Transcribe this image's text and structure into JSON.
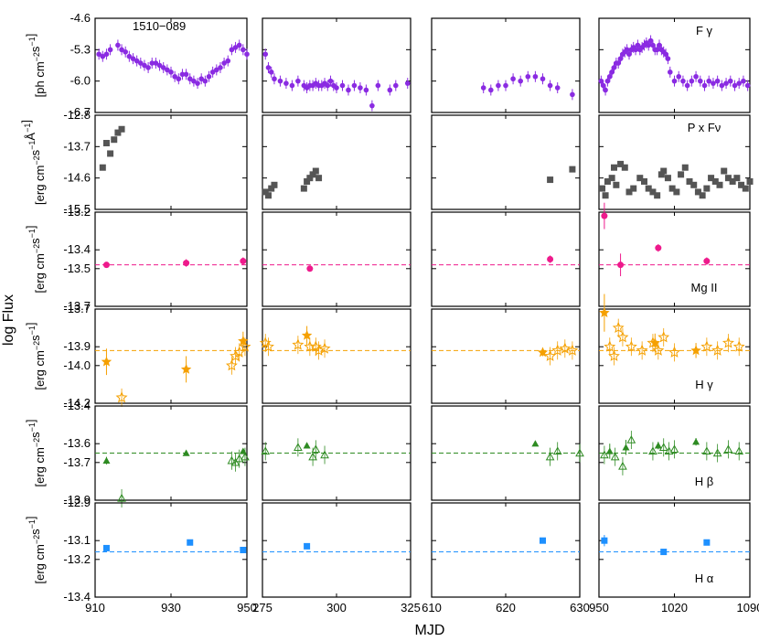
{
  "figure": {
    "y_axis_title": "log Flux",
    "x_axis_title": "MJD",
    "annotation": "1510−089"
  },
  "colors": {
    "gamma": "#8a2be2",
    "optical": "#555555",
    "mgii": "#ee1a8c",
    "hgamma": "#f5a000",
    "hbeta": "#2e8b22",
    "halpha": "#1e90ff",
    "upper_limit": "#bbbbbb"
  },
  "chart_data": [
    {
      "type": "scatter",
      "row": "gamma",
      "label": "F",
      "label_greek": "γ",
      "ylabel_lines": [
        "[ph cm",
        "s",
        "]"
      ],
      "ylabel_sup": [
        "−2",
        "−1"
      ],
      "ylim": [
        -6.7,
        -4.6
      ],
      "yticks": [
        "-4.6",
        "-5.3",
        "-6.0",
        "-6.7"
      ],
      "ytick_values": [
        -4.6,
        -5.3,
        -6.0,
        -6.7
      ],
      "panels": [
        {
          "x": [
            911,
            912,
            913,
            914,
            916,
            917,
            918,
            919,
            920,
            921,
            922,
            923,
            924,
            925,
            926,
            927,
            928,
            929,
            930,
            931,
            932,
            933,
            934,
            935,
            936,
            937,
            938,
            939,
            940,
            941,
            942,
            943,
            944,
            945,
            946,
            947,
            948,
            949,
            950
          ],
          "y": [
            -5.4,
            -5.45,
            -5.4,
            -5.3,
            -5.2,
            -5.3,
            -5.35,
            -5.45,
            -5.5,
            -5.55,
            -5.6,
            -5.65,
            -5.7,
            -5.6,
            -5.6,
            -5.65,
            -5.7,
            -5.75,
            -5.8,
            -5.9,
            -5.95,
            -5.85,
            -5.85,
            -5.95,
            -6.0,
            -6.05,
            -5.95,
            -6.0,
            -5.9,
            -5.8,
            -5.75,
            -5.7,
            -5.6,
            -5.55,
            -5.3,
            -5.25,
            -5.2,
            -5.3,
            -5.4
          ]
        },
        {
          "x": [
            276,
            277,
            278,
            279,
            281,
            283,
            285,
            287,
            289,
            290,
            291,
            292,
            293,
            294,
            295,
            296,
            297,
            298,
            299,
            300,
            302,
            304,
            306,
            308,
            310,
            312,
            314,
            318,
            320,
            324
          ],
          "y": [
            -5.4,
            -5.7,
            -5.8,
            -5.95,
            -6.0,
            -6.05,
            -6.1,
            -6.0,
            -6.1,
            -6.15,
            -6.1,
            -6.1,
            -6.05,
            -6.1,
            -6.1,
            -6.05,
            -6.1,
            -6.0,
            -6.1,
            -6.15,
            -6.1,
            -6.2,
            -6.1,
            -6.15,
            -6.2,
            -6.55,
            -6.1,
            -6.2,
            -6.1,
            -6.05
          ]
        },
        {
          "x": [
            617,
            618,
            619,
            620,
            621,
            622,
            623,
            624,
            625,
            626,
            627,
            629
          ],
          "y": [
            -6.15,
            -6.2,
            -6.1,
            -6.1,
            -5.95,
            -6.0,
            -5.9,
            -5.9,
            -5.95,
            -6.1,
            -6.15,
            -6.3
          ]
        },
        {
          "x": [
            952,
            954,
            956,
            958,
            960,
            962,
            964,
            966,
            968,
            970,
            972,
            974,
            976,
            978,
            980,
            982,
            984,
            986,
            988,
            990,
            992,
            994,
            996,
            998,
            1000,
            1002,
            1004,
            1006,
            1008,
            1010,
            1012,
            1014,
            1016,
            1020,
            1024,
            1028,
            1032,
            1036,
            1040,
            1044,
            1048,
            1052,
            1056,
            1060,
            1064,
            1068,
            1072,
            1076,
            1080,
            1084,
            1088
          ],
          "y": [
            -6.0,
            -6.1,
            -6.2,
            -6.0,
            -5.9,
            -5.8,
            -5.7,
            -5.6,
            -5.6,
            -5.5,
            -5.4,
            -5.35,
            -5.3,
            -5.4,
            -5.3,
            -5.25,
            -5.3,
            -5.2,
            -5.3,
            -5.25,
            -5.2,
            -5.15,
            -5.2,
            -5.1,
            -5.2,
            -5.3,
            -5.3,
            -5.2,
            -5.3,
            -5.35,
            -5.4,
            -5.5,
            -5.8,
            -6.0,
            -5.9,
            -6.0,
            -6.1,
            -6.0,
            -5.9,
            -6.0,
            -6.1,
            -6.0,
            -6.05,
            -6.0,
            -6.1,
            -6.05,
            -6.0,
            -6.1,
            -6.05,
            -6.0,
            -6.1
          ]
        }
      ]
    },
    {
      "type": "scatter",
      "row": "optical",
      "label": "P x F",
      "label_sub": "ν",
      "ylabel_lines": [
        "[erg cm",
        "s",
        "Å",
        "]"
      ],
      "ylabel_sup": [
        "−2",
        "−1",
        "−1"
      ],
      "ylim": [
        -15.5,
        -12.8
      ],
      "yticks": [
        "-12.8",
        "-13.7",
        "-14.6",
        "-15.5"
      ],
      "ytick_values": [
        -12.8,
        -13.7,
        -14.6,
        -15.5
      ],
      "panels": [
        {
          "x": [
            912,
            913,
            914,
            915,
            916,
            917
          ],
          "y": [
            -14.3,
            -13.6,
            -13.9,
            -13.5,
            -13.3,
            -13.2
          ]
        },
        {
          "x": [
            276,
            277,
            278,
            279,
            289,
            290,
            291,
            292,
            293,
            294
          ],
          "y": [
            -15.0,
            -15.1,
            -14.9,
            -14.8,
            -14.9,
            -14.7,
            -14.6,
            -14.5,
            -14.4,
            -14.6
          ]
        },
        {
          "x": [
            626,
            629
          ],
          "y": [
            -14.65,
            -14.35
          ]
        },
        {
          "x": [
            953,
            956,
            958,
            962,
            964,
            966,
            970,
            974,
            978,
            982,
            988,
            992,
            996,
            1000,
            1004,
            1008,
            1010,
            1014,
            1018,
            1022,
            1026,
            1030,
            1034,
            1038,
            1042,
            1046,
            1050,
            1054,
            1058,
            1062,
            1066,
            1070,
            1074,
            1078,
            1082,
            1086,
            1090
          ],
          "y": [
            -14.9,
            -15.1,
            -14.7,
            -14.6,
            -14.3,
            -14.8,
            -14.2,
            -14.3,
            -15.0,
            -14.9,
            -14.6,
            -14.7,
            -14.9,
            -15.0,
            -15.1,
            -14.5,
            -14.4,
            -14.6,
            -14.9,
            -15.0,
            -14.5,
            -14.3,
            -14.7,
            -14.8,
            -15.0,
            -15.1,
            -14.9,
            -14.6,
            -14.7,
            -14.8,
            -14.4,
            -14.6,
            -14.7,
            -14.6,
            -14.8,
            -14.9,
            -14.7
          ]
        }
      ]
    },
    {
      "type": "scatter",
      "row": "mgii",
      "label": "Mg II",
      "ylabel_lines": [
        "[erg cm",
        "s",
        "]"
      ],
      "ylabel_sup": [
        "−2",
        "−1"
      ],
      "ylim": [
        -13.7,
        -13.2
      ],
      "yticks": [
        "-13.2",
        "-13.4",
        "-13.5",
        "-13.7"
      ],
      "ytick_values": [
        -13.2,
        -13.4,
        -13.5,
        -13.7
      ],
      "mean": -13.48,
      "panels": [
        {
          "x": [
            913,
            934,
            949
          ],
          "y": [
            -13.48,
            -13.47,
            -13.46
          ],
          "err": [
            0.01,
            0.02,
            0.02
          ]
        },
        {
          "x": [
            291
          ],
          "y": [
            -13.5
          ],
          "err": [
            0.01
          ]
        },
        {
          "x": [
            626
          ],
          "y": [
            -13.45
          ],
          "err": [
            0.02
          ]
        },
        {
          "x": [
            955,
            970,
            1005,
            1050
          ],
          "y": [
            -13.22,
            -13.48,
            -13.39,
            -13.46
          ],
          "err": [
            0.07,
            0.06,
            0.02,
            0.02
          ]
        }
      ]
    },
    {
      "type": "scatter",
      "row": "hgamma",
      "label": "H",
      "label_greek": "γ",
      "ylabel_lines": [
        "[erg cm",
        "s",
        "]"
      ],
      "ylabel_sup": [
        "−2",
        "−1"
      ],
      "ylim": [
        -14.2,
        -13.7
      ],
      "yticks": [
        "-13.7",
        "-13.9",
        "-14.0",
        "-14.2"
      ],
      "ytick_values": [
        -13.7,
        -13.9,
        -14.0,
        -14.2
      ],
      "mean": -13.92,
      "panels": [
        {
          "x": [
            913,
            934,
            949
          ],
          "y": [
            -13.98,
            -14.02,
            -13.87
          ],
          "err": [
            0.07,
            0.07,
            0.05
          ],
          "open_x": [
            917,
            946,
            947,
            948,
            949.5
          ],
          "open_y": [
            -14.17,
            -14.0,
            -13.95,
            -13.93,
            -13.9
          ]
        },
        {
          "x": [
            290
          ],
          "y": [
            -13.84
          ],
          "err": [
            0.05
          ],
          "open_x": [
            276,
            277,
            287,
            291,
            293,
            294,
            296
          ],
          "open_y": [
            -13.88,
            -13.9,
            -13.89,
            -13.9,
            -13.9,
            -13.92,
            -13.91
          ]
        },
        {
          "x": [
            625
          ],
          "y": [
            -13.93
          ],
          "err": [
            0.02
          ],
          "open_x": [
            626,
            627,
            628,
            629
          ],
          "open_y": [
            -13.95,
            -13.92,
            -13.91,
            -13.92
          ]
        },
        {
          "x": [
            955,
            1002,
            1040
          ],
          "y": [
            -13.72,
            -13.88,
            -13.92
          ],
          "err": [
            0.1,
            0.05,
            0.04
          ],
          "open_x": [
            960,
            964,
            968,
            972,
            980,
            990,
            1000,
            1005,
            1010,
            1020,
            1050,
            1060,
            1070,
            1080
          ],
          "open_y": [
            -13.9,
            -13.95,
            -13.8,
            -13.85,
            -13.9,
            -13.92,
            -13.88,
            -13.92,
            -13.85,
            -13.93,
            -13.9,
            -13.92,
            -13.88,
            -13.9
          ]
        }
      ]
    },
    {
      "type": "scatter",
      "row": "hbeta",
      "label": "H",
      "label_greek": "β",
      "ylabel_lines": [
        "[erg cm",
        "s",
        "]"
      ],
      "ylabel_sup": [
        "−2",
        "−1"
      ],
      "ylim": [
        -13.9,
        -13.4
      ],
      "yticks": [
        "-13.4",
        "-13.6",
        "-13.7",
        "-13.9"
      ],
      "ytick_values": [
        -13.4,
        -13.6,
        -13.7,
        -13.9
      ],
      "mean": -13.65,
      "panels": [
        {
          "x": [
            913,
            934,
            949
          ],
          "y": [
            -13.69,
            -13.65,
            -13.64
          ],
          "err": [
            0.02,
            0.01,
            0.01
          ],
          "open_x": [
            917,
            946,
            947,
            948,
            949.5
          ],
          "open_y": [
            -13.89,
            -13.69,
            -13.7,
            -13.68,
            -13.67
          ]
        },
        {
          "x": [
            290
          ],
          "y": [
            -13.61
          ],
          "err": [
            0.01
          ],
          "open_x": [
            276,
            287,
            292,
            293,
            296
          ],
          "open_y": [
            -13.64,
            -13.62,
            -13.67,
            -13.63,
            -13.66
          ]
        },
        {
          "x": [
            624
          ],
          "y": [
            -13.6
          ],
          "err": [
            0.01
          ],
          "open_x": [
            626,
            627,
            630
          ],
          "open_y": [
            -13.67,
            -13.64,
            -13.65
          ]
        },
        {
          "x": [
            960,
            975,
            1005,
            1040
          ],
          "y": [
            -13.64,
            -13.62,
            -13.61,
            -13.59
          ],
          "err": [
            0.04,
            0.04,
            0.02,
            0.02
          ],
          "open_x": [
            955,
            965,
            972,
            980,
            1000,
            1010,
            1015,
            1020,
            1050,
            1060,
            1070,
            1080
          ],
          "open_y": [
            -13.66,
            -13.67,
            -13.72,
            -13.58,
            -13.64,
            -13.62,
            -13.64,
            -13.63,
            -13.64,
            -13.65,
            -13.63,
            -13.64
          ]
        }
      ]
    },
    {
      "type": "scatter",
      "row": "halpha",
      "label": "H",
      "label_greek": "α",
      "ylabel_lines": [
        "[erg cm",
        "s",
        "]"
      ],
      "ylabel_sup": [
        "−2",
        "−1"
      ],
      "ylim": [
        -13.4,
        -12.9
      ],
      "yticks": [
        "-12.9",
        "-13.1",
        "-13.2",
        "-13.4"
      ],
      "ytick_values": [
        -12.9,
        -13.1,
        -13.2,
        -13.4
      ],
      "mean": -13.16,
      "panels": [
        {
          "x": [
            913,
            935,
            949
          ],
          "y": [
            -13.14,
            -13.11,
            -13.15
          ],
          "err": [
            0.005,
            0.005,
            0.005
          ]
        },
        {
          "x": [
            290
          ],
          "y": [
            -13.13
          ],
          "err": [
            0.005
          ]
        },
        {
          "x": [
            625
          ],
          "y": [
            -13.1
          ],
          "err": [
            0.005
          ]
        },
        {
          "x": [
            955,
            1010,
            1050
          ],
          "y": [
            -13.1,
            -13.16,
            -13.11
          ],
          "err": [
            0.03,
            0.005,
            0.005
          ]
        }
      ]
    }
  ],
  "x_panels": [
    {
      "xlim": [
        910,
        950
      ],
      "ticks": [
        910,
        930,
        950
      ],
      "tick_labels": [
        "910",
        "930",
        "950"
      ]
    },
    {
      "xlim": [
        275,
        325
      ],
      "ticks": [
        275,
        300,
        325
      ],
      "tick_labels": [
        "275",
        "300",
        "325"
      ]
    },
    {
      "xlim": [
        610,
        630
      ],
      "ticks": [
        610,
        620,
        630
      ],
      "tick_labels": [
        "610",
        "620",
        "630"
      ]
    },
    {
      "xlim": [
        950,
        1090
      ],
      "ticks": [
        950,
        1020,
        1090
      ],
      "tick_labels": [
        "950",
        "1020",
        "1090"
      ]
    }
  ]
}
